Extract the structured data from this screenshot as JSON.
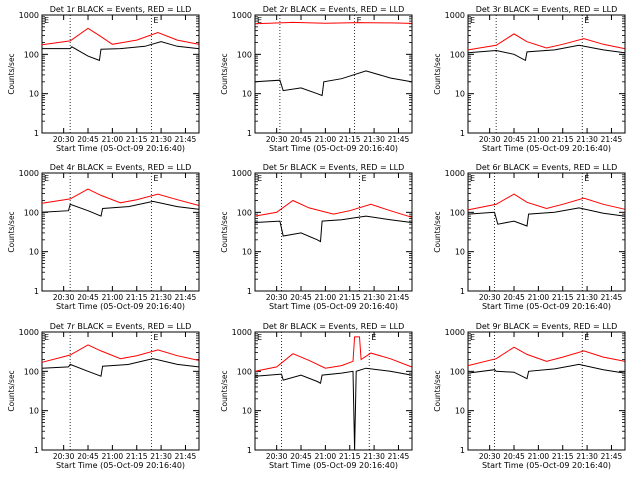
{
  "colors": {
    "events": "#000000",
    "lld": "#ff0000",
    "background": "#ffffff",
    "axis": "#000000"
  },
  "x_ticks": [
    "20:30",
    "20:45",
    "21:00",
    "21:15",
    "21:30",
    "21:45"
  ],
  "y_ticks": [
    "1",
    "10",
    "100",
    "1000"
  ],
  "ylabel": "Counts/sec",
  "xlabel": "Start Time (05-Oct-09 20:16:40)",
  "markers": [
    "E",
    "E"
  ],
  "chart_data": [
    {
      "type": "line",
      "title": "Det 1r BLACK = Events, RED = LLD",
      "yscale": "log",
      "ylim": [
        1,
        1000
      ],
      "xlim": [
        "20:16:40",
        "21:53:20"
      ],
      "marker_times": [
        "20:34",
        "21:24"
      ],
      "series": [
        {
          "name": "Events",
          "color": "#000000",
          "points": [
            [
              "20:16:40",
              140
            ],
            [
              "20:34",
              140
            ],
            [
              "20:35",
              155
            ],
            [
              "20:45",
              90
            ],
            [
              "20:52",
              70
            ],
            [
              "20:53",
              135
            ],
            [
              "21:05",
              140
            ],
            [
              "21:20",
              160
            ],
            [
              "21:30",
              210
            ],
            [
              "21:40",
              160
            ],
            [
              "21:53",
              140
            ]
          ]
        },
        {
          "name": "LLD",
          "color": "#ff0000",
          "points": [
            [
              "20:16:40",
              175
            ],
            [
              "20:34",
              220
            ],
            [
              "20:45",
              460
            ],
            [
              "20:52",
              300
            ],
            [
              "21:00",
              180
            ],
            [
              "21:15",
              230
            ],
            [
              "21:28",
              360
            ],
            [
              "21:40",
              230
            ],
            [
              "21:53",
              180
            ]
          ]
        }
      ]
    },
    {
      "type": "line",
      "title": "Det 2r BLACK = Events, RED = LLD",
      "yscale": "log",
      "ylim": [
        1,
        1000
      ],
      "xlim": [
        "20:16:40",
        "21:53:20"
      ],
      "marker_times": [
        "20:32",
        "21:18"
      ],
      "series": [
        {
          "name": "Events",
          "color": "#000000",
          "points": [
            [
              "20:16:40",
              20
            ],
            [
              "20:32",
              22
            ],
            [
              "20:34",
              12
            ],
            [
              "20:45",
              14
            ],
            [
              "20:55",
              10
            ],
            [
              "20:58",
              9
            ],
            [
              "20:59",
              20
            ],
            [
              "21:10",
              24
            ],
            [
              "21:25",
              38
            ],
            [
              "21:40",
              25
            ],
            [
              "21:53",
              20
            ]
          ]
        },
        {
          "name": "LLD",
          "color": "#ff0000",
          "points": [
            [
              "20:16:40",
              600
            ],
            [
              "20:40",
              650
            ],
            [
              "21:00",
              620
            ],
            [
              "21:20",
              640
            ],
            [
              "21:40",
              630
            ],
            [
              "21:53",
              610
            ]
          ]
        }
      ]
    },
    {
      "type": "line",
      "title": "Det 3r BLACK = Events, RED = LLD",
      "yscale": "log",
      "ylim": [
        1,
        1000
      ],
      "xlim": [
        "20:16:40",
        "21:53:20"
      ],
      "marker_times": [
        "20:34",
        "21:27"
      ],
      "series": [
        {
          "name": "Events",
          "color": "#000000",
          "points": [
            [
              "20:16:40",
              110
            ],
            [
              "20:34",
              125
            ],
            [
              "20:45",
              100
            ],
            [
              "20:52",
              70
            ],
            [
              "20:53",
              115
            ],
            [
              "21:10",
              130
            ],
            [
              "21:25",
              170
            ],
            [
              "21:40",
              130
            ],
            [
              "21:53",
              110
            ]
          ]
        },
        {
          "name": "LLD",
          "color": "#ff0000",
          "points": [
            [
              "20:16:40",
              130
            ],
            [
              "20:34",
              170
            ],
            [
              "20:45",
              330
            ],
            [
              "20:53",
              210
            ],
            [
              "21:05",
              145
            ],
            [
              "21:15",
              180
            ],
            [
              "21:28",
              250
            ],
            [
              "21:40",
              180
            ],
            [
              "21:53",
              140
            ]
          ]
        }
      ]
    },
    {
      "type": "line",
      "title": "Det 4r BLACK = Events, RED = LLD",
      "yscale": "log",
      "ylim": [
        1,
        1000
      ],
      "xlim": [
        "20:16:40",
        "21:53:20"
      ],
      "marker_times": [
        "20:34",
        "21:24"
      ],
      "series": [
        {
          "name": "Events",
          "color": "#000000",
          "points": [
            [
              "20:16:40",
              100
            ],
            [
              "20:33",
              110
            ],
            [
              "20:34",
              160
            ],
            [
              "20:45",
              110
            ],
            [
              "20:53",
              80
            ],
            [
              "20:54",
              125
            ],
            [
              "21:10",
              140
            ],
            [
              "21:25",
              190
            ],
            [
              "21:40",
              140
            ],
            [
              "21:53",
              120
            ]
          ]
        },
        {
          "name": "LLD",
          "color": "#ff0000",
          "points": [
            [
              "20:16:40",
              170
            ],
            [
              "20:34",
              220
            ],
            [
              "20:45",
              390
            ],
            [
              "20:53",
              270
            ],
            [
              "21:05",
              175
            ],
            [
              "21:15",
              210
            ],
            [
              "21:28",
              290
            ],
            [
              "21:40",
              210
            ],
            [
              "21:53",
              150
            ]
          ]
        }
      ]
    },
    {
      "type": "line",
      "title": "Det 5r BLACK = Events, RED = LLD",
      "yscale": "log",
      "ylim": [
        1,
        1000
      ],
      "xlim": [
        "20:16:40",
        "21:53:20"
      ],
      "marker_times": [
        "20:33",
        "21:21"
      ],
      "series": [
        {
          "name": "Events",
          "color": "#000000",
          "points": [
            [
              "20:16:40",
              55
            ],
            [
              "20:32",
              60
            ],
            [
              "20:34",
              25
            ],
            [
              "20:45",
              30
            ],
            [
              "20:55",
              20
            ],
            [
              "20:57",
              18
            ],
            [
              "20:58",
              60
            ],
            [
              "21:10",
              65
            ],
            [
              "21:25",
              80
            ],
            [
              "21:40",
              65
            ],
            [
              "21:53",
              55
            ]
          ]
        },
        {
          "name": "LLD",
          "color": "#ff0000",
          "points": [
            [
              "20:16:40",
              80
            ],
            [
              "20:30",
              100
            ],
            [
              "20:40",
              200
            ],
            [
              "20:50",
              130
            ],
            [
              "21:05",
              90
            ],
            [
              "21:15",
              110
            ],
            [
              "21:28",
              160
            ],
            [
              "21:40",
              110
            ],
            [
              "21:53",
              75
            ]
          ]
        }
      ]
    },
    {
      "type": "line",
      "title": "Det 6r BLACK = Events, RED = LLD",
      "yscale": "log",
      "ylim": [
        1,
        1000
      ],
      "xlim": [
        "20:16:40",
        "21:53:20"
      ],
      "marker_times": [
        "20:33",
        "21:27"
      ],
      "series": [
        {
          "name": "Events",
          "color": "#000000",
          "points": [
            [
              "20:16:40",
              90
            ],
            [
              "20:33",
              100
            ],
            [
              "20:35",
              50
            ],
            [
              "20:45",
              60
            ],
            [
              "20:53",
              45
            ],
            [
              "20:54",
              90
            ],
            [
              "21:10",
              100
            ],
            [
              "21:25",
              130
            ],
            [
              "21:40",
              95
            ],
            [
              "21:53",
              80
            ]
          ]
        },
        {
          "name": "LLD",
          "color": "#ff0000",
          "points": [
            [
              "20:16:40",
              115
            ],
            [
              "20:34",
              160
            ],
            [
              "20:45",
              290
            ],
            [
              "20:53",
              180
            ],
            [
              "21:05",
              125
            ],
            [
              "21:15",
              160
            ],
            [
              "21:28",
              230
            ],
            [
              "21:40",
              160
            ],
            [
              "21:53",
              120
            ]
          ]
        }
      ]
    },
    {
      "type": "line",
      "title": "Det 7r BLACK = Events, RED = LLD",
      "yscale": "log",
      "ylim": [
        1,
        1000
      ],
      "xlim": [
        "20:16:40",
        "21:53:20"
      ],
      "marker_times": [
        "20:34",
        "21:24"
      ],
      "series": [
        {
          "name": "Events",
          "color": "#000000",
          "points": [
            [
              "20:16:40",
              120
            ],
            [
              "20:33",
              130
            ],
            [
              "20:34",
              150
            ],
            [
              "20:45",
              100
            ],
            [
              "20:53",
              75
            ],
            [
              "20:54",
              135
            ],
            [
              "21:10",
              150
            ],
            [
              "21:25",
              210
            ],
            [
              "21:40",
              150
            ],
            [
              "21:53",
              130
            ]
          ]
        },
        {
          "name": "LLD",
          "color": "#ff0000",
          "points": [
            [
              "20:16:40",
              170
            ],
            [
              "20:34",
              260
            ],
            [
              "20:45",
              470
            ],
            [
              "20:53",
              330
            ],
            [
              "21:05",
              210
            ],
            [
              "21:15",
              250
            ],
            [
              "21:28",
              350
            ],
            [
              "21:40",
              250
            ],
            [
              "21:53",
              190
            ]
          ]
        }
      ]
    },
    {
      "type": "line",
      "title": "Det 8r BLACK = Events, RED = LLD",
      "yscale": "log",
      "ylim": [
        1,
        1000
      ],
      "xlim": [
        "20:16:40",
        "21:53:20"
      ],
      "marker_times": [
        "20:33",
        "21:27"
      ],
      "series": [
        {
          "name": "Events",
          "color": "#000000",
          "points": [
            [
              "20:16:40",
              75
            ],
            [
              "20:33",
              85
            ],
            [
              "20:34",
              60
            ],
            [
              "20:45",
              80
            ],
            [
              "20:55",
              55
            ],
            [
              "20:57",
              50
            ],
            [
              "20:58",
              80
            ],
            [
              "21:10",
              90
            ],
            [
              "21:17",
              100
            ],
            [
              "21:18",
              1
            ],
            [
              "21:19",
              100
            ],
            [
              "21:25",
              120
            ],
            [
              "21:40",
              100
            ],
            [
              "21:53",
              80
            ]
          ]
        },
        {
          "name": "LLD",
          "color": "#ff0000",
          "points": [
            [
              "20:16:40",
              100
            ],
            [
              "20:30",
              130
            ],
            [
              "20:40",
              280
            ],
            [
              "20:50",
              190
            ],
            [
              "21:00",
              120
            ],
            [
              "21:10",
              140
            ],
            [
              "21:17",
              180
            ],
            [
              "21:18",
              750
            ],
            [
              "21:21",
              750
            ],
            [
              "21:22",
              200
            ],
            [
              "21:28",
              290
            ],
            [
              "21:40",
              210
            ],
            [
              "21:53",
              130
            ]
          ]
        }
      ]
    },
    {
      "type": "line",
      "title": "Det 9r BLACK = Events, RED = LLD",
      "yscale": "log",
      "ylim": [
        1,
        1000
      ],
      "xlim": [
        "20:16:40",
        "21:53:20"
      ],
      "marker_times": [
        "20:33",
        "21:27"
      ],
      "series": [
        {
          "name": "Events",
          "color": "#000000",
          "points": [
            [
              "20:16:40",
              90
            ],
            [
              "20:33",
              110
            ],
            [
              "20:34",
              100
            ],
            [
              "20:45",
              95
            ],
            [
              "20:53",
              65
            ],
            [
              "20:54",
              100
            ],
            [
              "21:10",
              115
            ],
            [
              "21:25",
              150
            ],
            [
              "21:40",
              110
            ],
            [
              "21:53",
              90
            ]
          ]
        },
        {
          "name": "LLD",
          "color": "#ff0000",
          "points": [
            [
              "20:16:40",
              140
            ],
            [
              "20:34",
              210
            ],
            [
              "20:45",
              410
            ],
            [
              "20:53",
              270
            ],
            [
              "21:05",
              180
            ],
            [
              "21:15",
              230
            ],
            [
              "21:28",
              330
            ],
            [
              "21:40",
              230
            ],
            [
              "21:53",
              180
            ]
          ]
        }
      ]
    }
  ]
}
